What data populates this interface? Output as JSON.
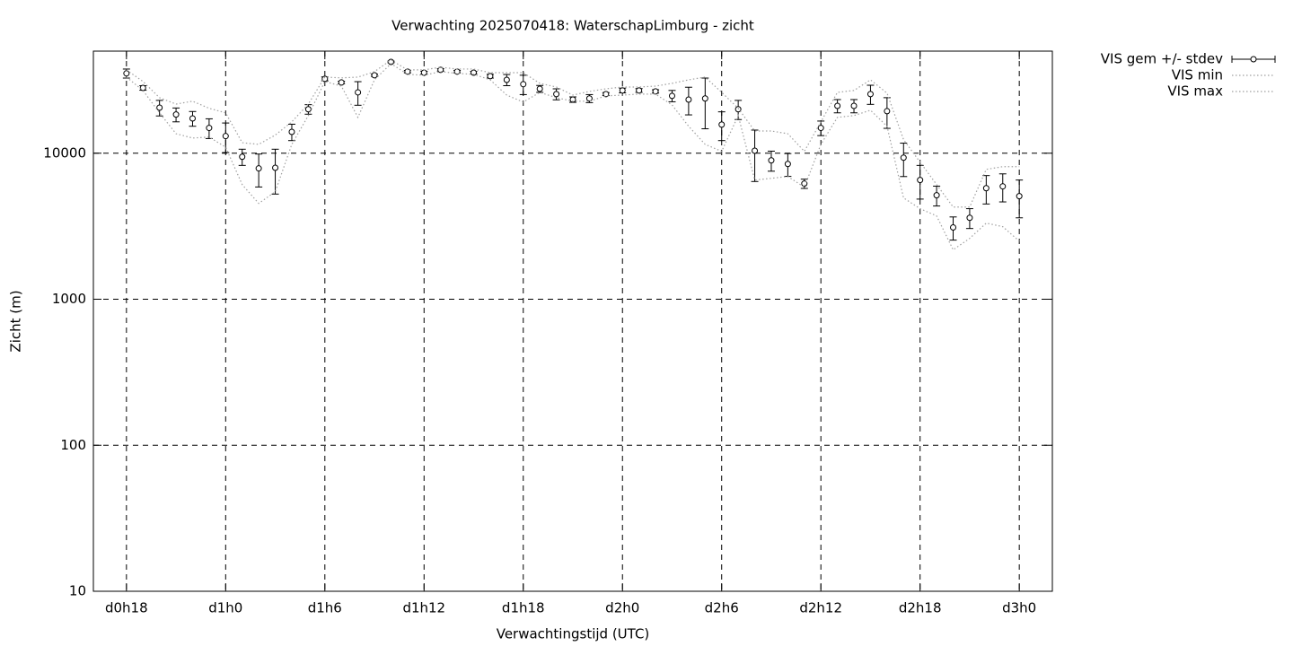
{
  "chart_data": {
    "type": "line",
    "title": "Verwachting 2025070418: WaterschapLimburg - zicht",
    "xlabel": "Verwachtingstijd (UTC)",
    "ylabel": "Zicht (m)",
    "log_y": true,
    "grid": true,
    "legend": "outside-top-right",
    "x": [
      0,
      1,
      2,
      3,
      4,
      5,
      6,
      7,
      8,
      9,
      10,
      11,
      12,
      13,
      14,
      15,
      16,
      17,
      18,
      19,
      20,
      21,
      22,
      23,
      24,
      25,
      26,
      27,
      28,
      29,
      30,
      31,
      32,
      33,
      34,
      35,
      36,
      37,
      38,
      39,
      40,
      41,
      42,
      43,
      44,
      45,
      46,
      47,
      48,
      49,
      50,
      51,
      52,
      53,
      54
    ],
    "xlim": [
      -2,
      56
    ],
    "xticks": [
      {
        "value": 0,
        "label": "d0h18"
      },
      {
        "value": 6,
        "label": "d1h0"
      },
      {
        "value": 12,
        "label": "d1h6"
      },
      {
        "value": 18,
        "label": "d1h12"
      },
      {
        "value": 24,
        "label": "d1h18"
      },
      {
        "value": 30,
        "label": "d2h0"
      },
      {
        "value": 36,
        "label": "d2h6"
      },
      {
        "value": 42,
        "label": "d2h12"
      },
      {
        "value": 48,
        "label": "d2h18"
      },
      {
        "value": 54,
        "label": "d3h0"
      }
    ],
    "ylim": [
      10,
      50000
    ],
    "yticks": [
      10,
      100,
      1000,
      10000
    ],
    "series": [
      {
        "name": "VIS gem +/- stdev",
        "color": "#000000",
        "style": "errorbars",
        "values": [
          35200,
          28000,
          20500,
          18400,
          17300,
          14900,
          13100,
          9450,
          7870,
          7950,
          14000,
          20000,
          32300,
          30500,
          26100,
          34200,
          42200,
          36200,
          35600,
          37200,
          36200,
          35600,
          33700,
          31800,
          29700,
          27600,
          25400,
          23300,
          23700,
          25400,
          26900,
          26900,
          26500,
          24700,
          23300,
          23700,
          15700,
          20000,
          10400,
          8930,
          8440,
          6190,
          14900,
          21100,
          21100,
          25400,
          19400,
          9320,
          6550,
          5150,
          3100,
          3610,
          5760,
          5930,
          5080
        ],
        "errors": [
          2500,
          1000,
          2500,
          2000,
          2000,
          2300,
          3000,
          1200,
          2000,
          2700,
          1800,
          1500,
          1000,
          600,
          4800,
          600,
          500,
          700,
          800,
          700,
          700,
          700,
          1000,
          2800,
          4500,
          1500,
          2200,
          1000,
          1500,
          600,
          1000,
          800,
          700,
          2200,
          5000,
          9000,
          3500,
          3000,
          4000,
          1400,
          1500,
          450,
          1700,
          2200,
          2200,
          3800,
          4600,
          2400,
          1700,
          800,
          560,
          560,
          1270,
          1290,
          1470
        ]
      },
      {
        "name": "VIS min",
        "color": "#a0a0a0",
        "style": "dotted",
        "values": [
          33200,
          26900,
          18900,
          13600,
          12700,
          12900,
          11000,
          6100,
          4530,
          5450,
          11500,
          18100,
          31000,
          28800,
          17600,
          31800,
          41100,
          34700,
          34200,
          36200,
          35200,
          34700,
          31800,
          25000,
          22400,
          26100,
          24000,
          22700,
          22700,
          24700,
          25000,
          25400,
          25400,
          21400,
          15300,
          11500,
          10300,
          18100,
          6550,
          6730,
          6930,
          5850,
          11500,
          17600,
          18100,
          19700,
          15300,
          4940,
          4170,
          3720,
          2180,
          2610,
          3320,
          3140,
          2500
        ]
      },
      {
        "name": "VIS max",
        "color": "#a0a0a0",
        "style": "dotted",
        "values": [
          37200,
          31000,
          24000,
          21700,
          22700,
          20300,
          18900,
          11800,
          11500,
          13300,
          16400,
          21700,
          33200,
          32800,
          33200,
          36200,
          43500,
          37200,
          37200,
          38800,
          37700,
          37700,
          35600,
          35600,
          35600,
          30100,
          28400,
          25000,
          26500,
          27600,
          28400,
          28400,
          28800,
          30100,
          31800,
          33200,
          26100,
          20300,
          14200,
          14200,
          13600,
          10300,
          16400,
          26100,
          26900,
          31800,
          25800,
          12400,
          8680,
          6100,
          4280,
          4280,
          7750,
          8090,
          8090
        ]
      }
    ]
  }
}
